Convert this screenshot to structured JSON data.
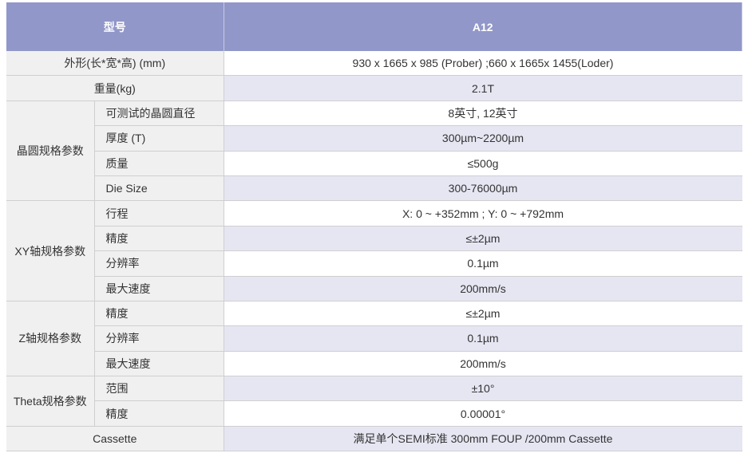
{
  "header": {
    "label": "型号",
    "model": "A12"
  },
  "rows": [
    {
      "group": "外形(长*宽*高) (mm)",
      "value": "930 x 1665 x 985 (Prober) ;660 x 1665x 1455(Loder)"
    },
    {
      "group": "重量(kg)",
      "value": "2.1T"
    },
    {
      "group": "晶圆规格参数",
      "items": [
        {
          "label": "可测试的晶圆直径",
          "value": "8英寸, 12英寸"
        },
        {
          "label": "厚度 (T)",
          "value": "300µm~2200µm"
        },
        {
          "label": "质量",
          "value": "≤500g"
        },
        {
          "label": "Die Size",
          "value": "300-76000µm"
        }
      ]
    },
    {
      "group": "XY轴规格参数",
      "items": [
        {
          "label": "行程",
          "value": "X: 0 ~ +352mm ; Y: 0 ~ +792mm"
        },
        {
          "label": "精度",
          "value": "≤±2µm"
        },
        {
          "label": "分辨率",
          "value": "0.1µm"
        },
        {
          "label": "最大速度",
          "value": "200mm/s"
        }
      ]
    },
    {
      "group": "Z轴规格参数",
      "items": [
        {
          "label": "精度",
          "value": "≤±2µm"
        },
        {
          "label": "分辨率",
          "value": "0.1µm"
        },
        {
          "label": "最大速度",
          "value": "200mm/s"
        }
      ]
    },
    {
      "group": "Theta规格参数",
      "items": [
        {
          "label": "范围",
          "value": "±10°"
        },
        {
          "label": "精度",
          "value": "0.00001°"
        }
      ]
    },
    {
      "group": "Cassette",
      "value": "满足单个SEMI标准 300mm FOUP /200mm Cassette"
    }
  ]
}
